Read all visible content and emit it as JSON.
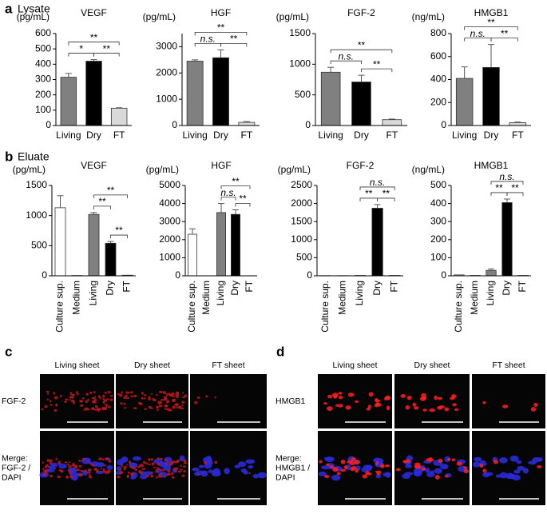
{
  "panels": {
    "a": "a",
    "b": "b",
    "c": "c",
    "d": "d"
  },
  "sections": {
    "lysate": "Lysate",
    "eluate": "Eluate"
  },
  "chart_data": [
    {
      "type": "bar",
      "title": "VEGF",
      "y_label": "(pg/mL)",
      "categories": [
        "Living",
        "Dry",
        "FT"
      ],
      "values": [
        315,
        420,
        113
      ],
      "errors": [
        25,
        10,
        3
      ],
      "colors": [
        "#808080",
        "#000000",
        "#d9d9d9"
      ],
      "ylim": [
        0,
        600
      ],
      "yticks": [
        0,
        100,
        200,
        300,
        400,
        500,
        600
      ],
      "annotations": [
        {
          "text": "*",
          "between": [
            "Living",
            "Dry"
          ]
        },
        {
          "text": "**",
          "between": [
            "Dry",
            "FT"
          ]
        },
        {
          "text": "**",
          "between": [
            "Living",
            "FT"
          ]
        }
      ]
    },
    {
      "type": "bar",
      "title": "HGF",
      "y_label": "(pg/mL)",
      "categories": [
        "Living",
        "Dry",
        "FT"
      ],
      "values": [
        2450,
        2580,
        120
      ],
      "errors": [
        50,
        300,
        30
      ],
      "colors": [
        "#808080",
        "#000000",
        "#d9d9d9"
      ],
      "ylim": [
        0,
        3500
      ],
      "yticks": [
        0,
        1000,
        2000,
        3000
      ],
      "annotations": [
        {
          "text": "n.s.",
          "italic": true,
          "between": [
            "Living",
            "Dry"
          ]
        },
        {
          "text": "**",
          "between": [
            "Dry",
            "FT"
          ]
        },
        {
          "text": "**",
          "between": [
            "Living",
            "FT"
          ]
        }
      ]
    },
    {
      "type": "bar",
      "title": "FGF-2",
      "y_label": "(pg/mL)",
      "categories": [
        "Living",
        "Dry",
        "FT"
      ],
      "values": [
        870,
        710,
        95
      ],
      "errors": [
        80,
        110,
        10
      ],
      "colors": [
        "#808080",
        "#000000",
        "#d9d9d9"
      ],
      "ylim": [
        0,
        1500
      ],
      "yticks": [
        0,
        500,
        1000,
        1500
      ],
      "annotations": [
        {
          "text": "n.s.",
          "italic": true,
          "between": [
            "Living",
            "Dry"
          ]
        },
        {
          "text": "**",
          "between": [
            "Dry",
            "FT"
          ]
        },
        {
          "text": "**",
          "between": [
            "Living",
            "FT"
          ]
        }
      ]
    },
    {
      "type": "bar",
      "title": "HMGB1",
      "y_label": "(ng/mL)",
      "categories": [
        "Living",
        "Dry",
        "FT"
      ],
      "values": [
        410,
        505,
        25
      ],
      "errors": [
        100,
        200,
        5
      ],
      "colors": [
        "#808080",
        "#000000",
        "#d9d9d9"
      ],
      "ylim": [
        0,
        800
      ],
      "yticks": [
        0,
        200,
        400,
        600,
        800
      ],
      "annotations": [
        {
          "text": "n.s.",
          "italic": true,
          "between": [
            "Living",
            "Dry"
          ]
        },
        {
          "text": "**",
          "between": [
            "Dry",
            "FT"
          ]
        },
        {
          "text": "**",
          "between": [
            "Living",
            "FT"
          ]
        }
      ]
    },
    {
      "type": "bar",
      "title": "VEGF",
      "y_label": "(pg/mL)",
      "rotate_labels": true,
      "categories": [
        "Culture sup.",
        "Medium",
        "Living",
        "Dry",
        "FT"
      ],
      "values": [
        1130,
        5,
        1020,
        540,
        10
      ],
      "errors": [
        200,
        null,
        30,
        30,
        null
      ],
      "colors": [
        "#ffffff",
        "#ffffff",
        "#808080",
        "#000000",
        "#d9d9d9"
      ],
      "ylim": [
        0,
        1500
      ],
      "yticks": [
        0,
        500,
        1000,
        1500
      ],
      "annotations": [
        {
          "text": "**",
          "between": [
            "Living",
            "Dry"
          ]
        },
        {
          "text": "**",
          "between": [
            "Dry",
            "FT"
          ]
        },
        {
          "text": "**",
          "between": [
            "Living",
            "FT"
          ]
        }
      ]
    },
    {
      "type": "bar",
      "title": "HGF",
      "y_label": "(pg/mL)",
      "rotate_labels": true,
      "categories": [
        "Culture sup.",
        "Medium",
        "Living",
        "Dry",
        "FT"
      ],
      "values": [
        2300,
        0,
        3500,
        3400,
        0
      ],
      "errors": [
        300,
        null,
        500,
        250,
        null
      ],
      "colors": [
        "#ffffff",
        "#ffffff",
        "#808080",
        "#000000",
        "#d9d9d9"
      ],
      "ylim": [
        0,
        5000
      ],
      "yticks": [
        0,
        1000,
        2000,
        3000,
        4000,
        5000
      ],
      "annotations": [
        {
          "text": "n.s.",
          "italic": true,
          "between": [
            "Living",
            "Dry"
          ]
        },
        {
          "text": "**",
          "between": [
            "Dry",
            "FT"
          ]
        },
        {
          "text": "**",
          "between": [
            "Living",
            "FT"
          ]
        }
      ]
    },
    {
      "type": "bar",
      "title": "FGF-2",
      "y_label": "(pg/mL)",
      "rotate_labels": true,
      "categories": [
        "Culture sup.",
        "Medium",
        "Living",
        "Dry",
        "FT"
      ],
      "values": [
        5,
        5,
        10,
        1870,
        10
      ],
      "errors": [
        null,
        null,
        null,
        100,
        null
      ],
      "colors": [
        "#ffffff",
        "#ffffff",
        "#808080",
        "#000000",
        "#d9d9d9"
      ],
      "ylim": [
        0,
        2500
      ],
      "yticks": [
        0,
        500,
        1000,
        1500,
        2000,
        2500
      ],
      "annotations": [
        {
          "text": "**",
          "between": [
            "Living",
            "Dry"
          ]
        },
        {
          "text": "**",
          "between": [
            "Dry",
            "FT"
          ]
        },
        {
          "text": "n.s.",
          "italic": true,
          "between": [
            "Living",
            "FT"
          ]
        }
      ]
    },
    {
      "type": "bar",
      "title": "HMGB1",
      "y_label": "(ng/mL)",
      "rotate_labels": true,
      "categories": [
        "Culture sup.",
        "Medium",
        "Living",
        "Dry",
        "FT"
      ],
      "values": [
        5,
        2,
        30,
        405,
        2
      ],
      "errors": [
        null,
        null,
        8,
        20,
        null
      ],
      "colors": [
        "#ffffff",
        "#ffffff",
        "#808080",
        "#000000",
        "#d9d9d9"
      ],
      "ylim": [
        0,
        500
      ],
      "yticks": [
        0,
        100,
        200,
        300,
        400,
        500
      ],
      "annotations": [
        {
          "text": "**",
          "between": [
            "Living",
            "Dry"
          ]
        },
        {
          "text": "**",
          "between": [
            "Dry",
            "FT"
          ]
        },
        {
          "text": "n.s.",
          "italic": true,
          "between": [
            "Living",
            "FT"
          ]
        }
      ]
    }
  ],
  "images": [
    {
      "columns": [
        "Living sheet",
        "Dry sheet",
        "FT sheet"
      ],
      "rows": [
        [
          {
            "text": "FGF-2",
            "color": "#e02020"
          }
        ],
        [
          {
            "text": "Merge:",
            "color": "#000000"
          },
          {
            "text": "FGF-2 /",
            "color": "#e02020"
          },
          {
            "text": "DAPI",
            "color": "#2a2aff"
          }
        ]
      ]
    },
    {
      "columns": [
        "Living sheet",
        "Dry sheet",
        "FT sheet"
      ],
      "rows": [
        [
          {
            "text": "HMGB1",
            "color": "#e02020"
          }
        ],
        [
          {
            "text": "Merge:",
            "color": "#000000"
          },
          {
            "text": "HMGB1 /",
            "color": "#e02020"
          },
          {
            "text": "DAPI",
            "color": "#2a2aff"
          }
        ]
      ]
    }
  ]
}
